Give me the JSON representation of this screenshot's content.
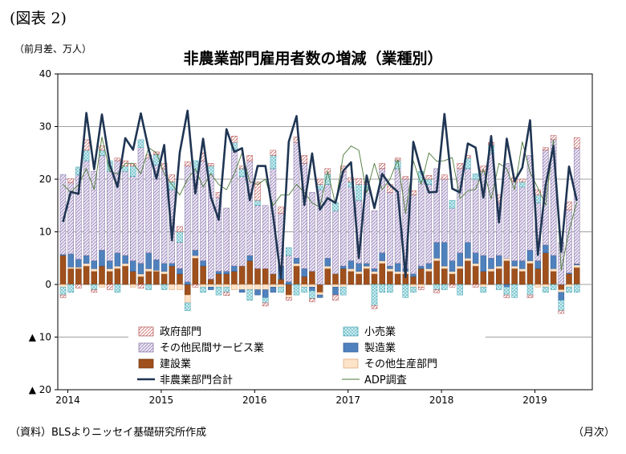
{
  "figure": {
    "label": "(図表 2)",
    "unit": "（前月差、万人）",
    "source": "（資料）BLSよりニッセイ基礎研究所作成",
    "x_unit": "（月次）"
  },
  "chart_data": {
    "type": "bar",
    "stacked": true,
    "title": "非農業部門雇用者数の増減（業種別）",
    "ylabel": "（前月差、万人）",
    "xlabel": "（月次）",
    "ylim": [
      -20,
      40
    ],
    "y_ticks": [
      {
        "value": 40,
        "label": "40"
      },
      {
        "value": 30,
        "label": "30"
      },
      {
        "value": 20,
        "label": "20"
      },
      {
        "value": 10,
        "label": "10"
      },
      {
        "value": 0,
        "label": "0"
      },
      {
        "value": -10,
        "label": "▲ 10"
      },
      {
        "value": -20,
        "label": "▲ 20"
      }
    ],
    "x_year_labels": [
      "2014",
      "2015",
      "2016",
      "2017",
      "2018",
      "2019"
    ],
    "grid": true,
    "legend_position": "bottom-inside",
    "colors": {
      "gov": "#f4c9c9",
      "retail": "#a9dde3",
      "services": "#d8cde8",
      "manufacturing": "#4f81bd",
      "construction": "#a0501c",
      "other_goods": "#fde3c8",
      "total": "#1f3553",
      "adp": "#4e7a3a"
    },
    "categories": [
      "2014-01",
      "2014-02",
      "2014-03",
      "2014-04",
      "2014-05",
      "2014-06",
      "2014-07",
      "2014-08",
      "2014-09",
      "2014-10",
      "2014-11",
      "2014-12",
      "2015-01",
      "2015-02",
      "2015-03",
      "2015-04",
      "2015-05",
      "2015-06",
      "2015-07",
      "2015-08",
      "2015-09",
      "2015-10",
      "2015-11",
      "2015-12",
      "2016-01",
      "2016-02",
      "2016-03",
      "2016-04",
      "2016-05",
      "2016-06",
      "2016-07",
      "2016-08",
      "2016-09",
      "2016-10",
      "2016-11",
      "2016-12",
      "2017-01",
      "2017-02",
      "2017-03",
      "2017-04",
      "2017-05",
      "2017-06",
      "2017-07",
      "2017-08",
      "2017-09",
      "2017-10",
      "2017-11",
      "2017-12",
      "2018-01",
      "2018-02",
      "2018-03",
      "2018-04",
      "2018-05",
      "2018-06",
      "2018-07",
      "2018-08",
      "2018-09",
      "2018-10",
      "2018-11",
      "2018-12",
      "2019-01",
      "2019-02",
      "2019-03",
      "2019-04",
      "2019-05",
      "2019-06",
      "2019-07"
    ],
    "series": [
      {
        "key": "gov",
        "name": "政府部門",
        "values": [
          -0.5,
          0.8,
          -0.7,
          2.0,
          -0.5,
          0.8,
          -1.0,
          0.5,
          1.0,
          0.5,
          -0.7,
          0.6,
          0.5,
          1.0,
          1.3,
          1.0,
          0.8,
          -0.5,
          1.5,
          0.5,
          1.0,
          -0.6,
          1.2,
          0.5,
          1.0,
          3.5,
          -0.6,
          1.0,
          1.2,
          -0.5,
          1.0,
          1.5,
          -0.6,
          1.0,
          1.0,
          -1.0,
          1.0,
          0.8,
          1.1,
          0.5,
          -0.6,
          1.0,
          1.5,
          0.5,
          0.5,
          0.8,
          -0.5,
          0.7,
          -0.6,
          0.8,
          -0.5,
          1.0,
          0.5,
          -0.5,
          1.0,
          0.5,
          1.5,
          -0.5,
          0.8,
          0.5,
          -0.5,
          1.0,
          0.5,
          0.8,
          -0.5,
          1.5,
          2.0
        ]
      },
      {
        "key": "retail",
        "name": "小売業",
        "values": [
          -1.5,
          -1.5,
          1.5,
          2.0,
          -1.0,
          1.0,
          2.0,
          -1.5,
          1.0,
          2.0,
          1.5,
          -1.0,
          2.0,
          -1.0,
          1.5,
          2.0,
          -1.5,
          2.0,
          -1.0,
          1.5,
          -1.5,
          -1.0,
          1.5,
          1.5,
          -2.0,
          1.0,
          -1.0,
          2.5,
          -1.0,
          1.5,
          -2.0,
          -1.0,
          -1.5,
          1.0,
          2.0,
          1.5,
          -1.5,
          1.0,
          3.0,
          1.0,
          -4.0,
          -1.5,
          -1.5,
          1.5,
          -2.5,
          -1.0,
          2.0,
          1.0,
          -1.0,
          -1.0,
          1.5,
          -2.0,
          2.0,
          1.0,
          -1.0,
          1.5,
          -1.0,
          -1.5,
          -2.5,
          1.0,
          -2.0,
          1.5,
          -1.0,
          -1.0,
          -2.0,
          -1.0,
          -1.5
        ]
      },
      {
        "key": "services",
        "name": "その他民間サービス業",
        "values": [
          15.2,
          13.5,
          16.0,
          18.0,
          17.0,
          18.0,
          17.0,
          17.5,
          16.0,
          16.0,
          22.0,
          18.0,
          18.0,
          18.0,
          14.0,
          5.0,
          22.0,
          15.0,
          19.0,
          20.0,
          14.0,
          12.0,
          22.0,
          17.0,
          18.0,
          12.0,
          12.0,
          20.0,
          10.0,
          5.0,
          22.0,
          20.0,
          15.0,
          18.0,
          14.0,
          12.0,
          18.0,
          14.0,
          12.0,
          14.0,
          11.0,
          16.0,
          14.0,
          18.0,
          17.0,
          15.0,
          16.0,
          15.0,
          14.0,
          12.0,
          10.0,
          16.0,
          14.0,
          14.0,
          16.0,
          20.0,
          10.0,
          18.0,
          15.0,
          14.0,
          18.0,
          11.0,
          18.0,
          22.0,
          8.0,
          12.0,
          22.0
        ]
      },
      {
        "key": "manufacturing",
        "name": "製造業",
        "values": [
          0.2,
          2.5,
          1.5,
          1.5,
          1.5,
          3.0,
          1.5,
          2.5,
          1.5,
          2.0,
          2.0,
          3.0,
          2.0,
          1.5,
          0.5,
          1.0,
          0.5,
          1.0,
          1.0,
          -0.5,
          0.5,
          0.5,
          1.0,
          -0.5,
          1.0,
          -1.0,
          -1.5,
          -1.0,
          2.5,
          0.5,
          1.0,
          1.5,
          -0.7,
          -0.5,
          1.5,
          -1.5,
          0.5,
          1.5,
          1.5,
          0.5,
          0.5,
          1.5,
          0.5,
          1.5,
          0.5,
          0.5,
          0.5,
          1.0,
          3.0,
          4.5,
          2.0,
          2.5,
          3.0,
          2.0,
          3.0,
          2.0,
          2.0,
          -0.5,
          1.0,
          1.5,
          2.0,
          1.5,
          1.5,
          2.5,
          -1.5,
          0.2,
          0.2
        ]
      },
      {
        "key": "construction",
        "name": "建設業",
        "values": [
          5.5,
          3.0,
          3.0,
          3.5,
          2.5,
          3.5,
          2.5,
          3.0,
          3.5,
          2.5,
          1.5,
          2.5,
          2.5,
          2.0,
          3.5,
          2.0,
          -2.0,
          5.0,
          3.5,
          1.0,
          2.0,
          2.0,
          2.5,
          3.5,
          4.5,
          3.0,
          3.0,
          2.0,
          1.0,
          -2.0,
          3.5,
          1.5,
          2.5,
          -1.5,
          3.0,
          2.0,
          3.0,
          2.5,
          2.0,
          3.0,
          2.0,
          4.0,
          2.5,
          2.0,
          2.0,
          1.5,
          3.0,
          2.5,
          4.5,
          3.0,
          2.0,
          3.0,
          4.5,
          3.5,
          2.5,
          2.5,
          3.0,
          4.5,
          3.0,
          2.5,
          4.0,
          3.0,
          6.0,
          2.5,
          -1.0,
          2.0,
          3.2
        ]
      },
      {
        "key": "other_goods",
        "name": "その他生産部門",
        "values": [
          -0.5,
          0.3,
          0.3,
          0.5,
          0.5,
          -0.5,
          0.5,
          0.5,
          0.5,
          -0.5,
          0.5,
          0.5,
          0.2,
          0.5,
          -1.0,
          -1.0,
          -1.5,
          0.5,
          -0.5,
          -0.5,
          -0.5,
          -0.5,
          -1.0,
          -1.0,
          -1.0,
          -1.0,
          -1.0,
          -0.5,
          -0.5,
          -0.5,
          0.5,
          -0.5,
          -0.5,
          -0.5,
          0.5,
          -0.5,
          -0.5,
          0.5,
          0.5,
          0.5,
          0.5,
          0.5,
          0.5,
          0.5,
          0.5,
          -0.5,
          -0.5,
          0.5,
          0.5,
          0.5,
          0.5,
          0.5,
          0.5,
          0.5,
          -0.5,
          0.5,
          0.5,
          0.5,
          0.5,
          0.5,
          0.5,
          -0.5,
          -0.5,
          0.5,
          -0.5,
          -0.5,
          0.5
        ]
      }
    ],
    "lines": [
      {
        "key": "total",
        "name": "非農業部門合計",
        "values": [
          11.9,
          17.6,
          17.2,
          32.6,
          21.9,
          32.3,
          22.8,
          18.5,
          27.8,
          25.6,
          32.5,
          25.7,
          20.1,
          26.5,
          8.4,
          25.1,
          33.0,
          17.3,
          27.7,
          16.6,
          12.3,
          29.5,
          25.2,
          25.9,
          16.0,
          22.5,
          22.5,
          13.0,
          1.1,
          27.1,
          32.0,
          15.1,
          24.9,
          14.2,
          16.4,
          15.5,
          21.6,
          23.2,
          5.0,
          20.7,
          14.5,
          21.0,
          18.9,
          17.6,
          1.4,
          27.1,
          21.6,
          17.5,
          17.6,
          32.4,
          18.2,
          17.5,
          26.8,
          26.0,
          16.5,
          28.2,
          11.8,
          27.7,
          19.6,
          22.2,
          31.2,
          5.6,
          18.9,
          26.3,
          6.2,
          22.4,
          15.9
        ]
      },
      {
        "key": "adp",
        "name": "ADP調査",
        "values": [
          19.0,
          17.5,
          19.0,
          22.0,
          18.0,
          28.0,
          21.5,
          21.0,
          23.0,
          23.0,
          21.0,
          26.0,
          25.0,
          21.0,
          19.0,
          17.0,
          20.0,
          22.0,
          18.5,
          21.0,
          19.0,
          18.0,
          21.0,
          25.0,
          19.5,
          19.0,
          20.0,
          15.0,
          17.0,
          17.0,
          19.0,
          17.5,
          15.5,
          14.7,
          21.5,
          15.3,
          24.6,
          26.3,
          25.5,
          17.4,
          23.0,
          18.0,
          20.0,
          23.7,
          13.5,
          23.5,
          19.0,
          25.0,
          23.4,
          23.5,
          24.1,
          16.3,
          17.8,
          18.1,
          21.9,
          16.3,
          23.0,
          22.0,
          18.0,
          27.1,
          21.3,
          18.3,
          15.1,
          27.5,
          2.7,
          10.2,
          15.6
        ]
      }
    ]
  }
}
